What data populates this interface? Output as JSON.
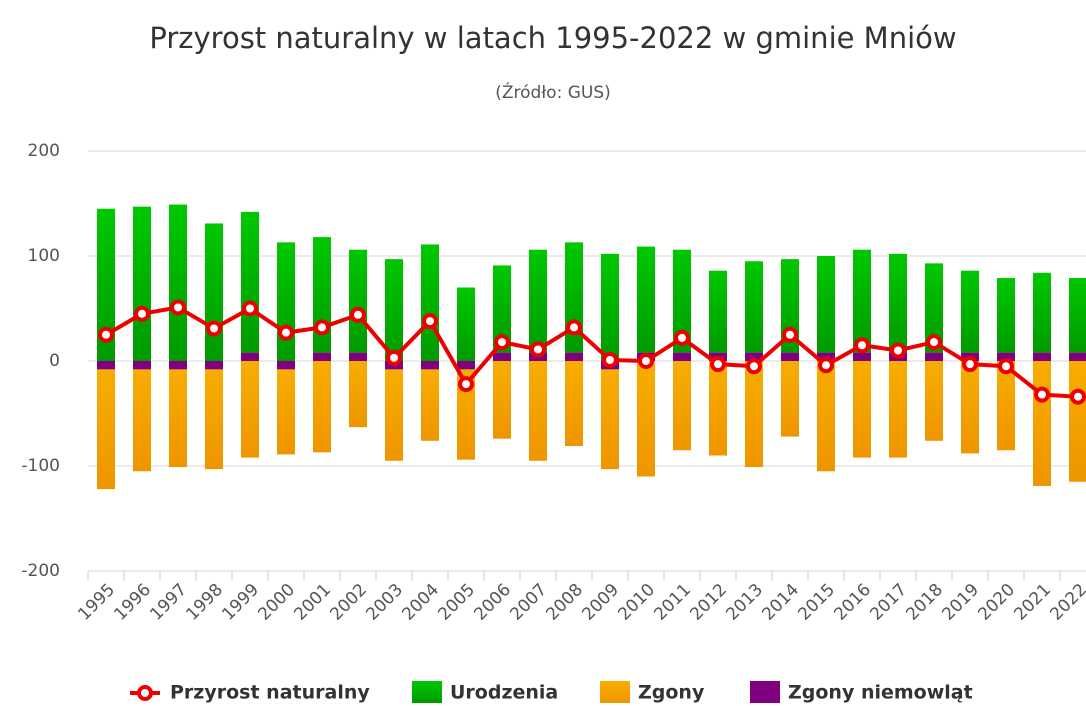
{
  "chart_data": {
    "type": "bar",
    "title": "Przyrost naturalny w latach 1995-2022 w gminie Mniów",
    "subtitle": "(Źródło: GUS)",
    "categories": [
      "1995",
      "1996",
      "1997",
      "1998",
      "1999",
      "2000",
      "2001",
      "2002",
      "2003",
      "2004",
      "2005",
      "2006",
      "2007",
      "2008",
      "2009",
      "2010",
      "2011",
      "2012",
      "2013",
      "2014",
      "2015",
      "2016",
      "2017",
      "2018",
      "2019",
      "2020",
      "2021",
      "2022"
    ],
    "ylim": [
      -200,
      200
    ],
    "yticks": [
      -200,
      -100,
      0,
      100,
      200
    ],
    "grid": true,
    "series": [
      {
        "name": "Przyrost naturalny",
        "type": "line",
        "color": "#ee0000",
        "values": [
          25,
          45,
          51,
          31,
          50,
          27,
          32,
          44,
          3,
          38,
          -22,
          18,
          11,
          32,
          1,
          0,
          22,
          -3,
          -5,
          25,
          -4,
          15,
          10,
          18,
          -3,
          -5,
          -32,
          -34
        ]
      },
      {
        "name": "Urodzenia",
        "type": "bar",
        "color": "#00b800",
        "values": [
          145,
          147,
          149,
          131,
          134,
          113,
          110,
          98,
          97,
          111,
          70,
          83,
          98,
          105,
          102,
          101,
          98,
          78,
          87,
          89,
          92,
          98,
          94,
          85,
          78,
          71,
          76,
          71
        ]
      },
      {
        "name": "Zgony",
        "type": "bar",
        "color": "#f5a300",
        "values": [
          -114,
          -97,
          -93,
          -95,
          -92,
          -81,
          -87,
          -63,
          -87,
          -68,
          -86,
          -74,
          -95,
          -81,
          -95,
          -110,
          -85,
          -90,
          -101,
          -72,
          -105,
          -92,
          -92,
          -76,
          -88,
          -85,
          -119,
          -115
        ]
      },
      {
        "name": "Zgony niemowląt",
        "type": "bar",
        "color": "#800080",
        "values": [
          -8,
          -8,
          -8,
          -8,
          8,
          -8,
          8,
          8,
          -8,
          -8,
          -8,
          8,
          8,
          8,
          -8,
          8,
          8,
          8,
          8,
          8,
          8,
          8,
          8,
          8,
          8,
          8,
          8,
          8
        ]
      }
    ]
  }
}
